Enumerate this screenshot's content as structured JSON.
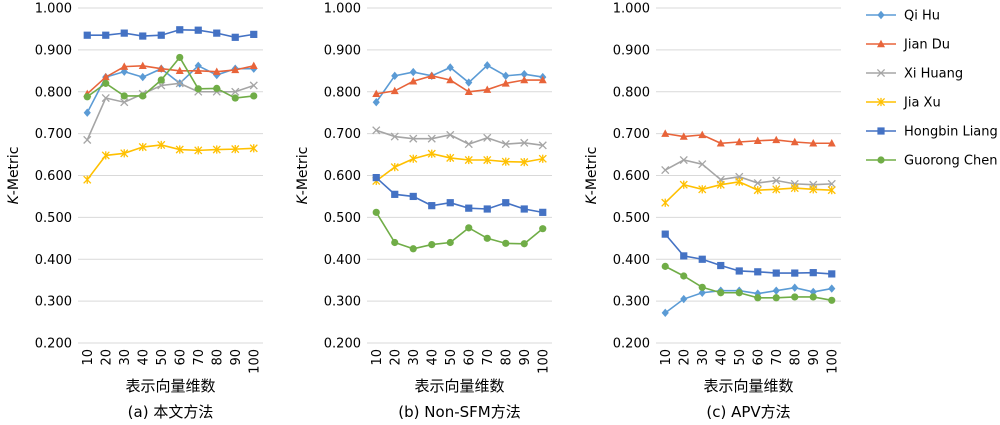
{
  "chart_data": [
    {
      "type": "line",
      "caption": "(a) 本文方法",
      "xlabel": "表示向量维数",
      "ylabel_prefix": "K",
      "ylabel_suffix": "-Metric",
      "ylim": [
        0.2,
        1.0
      ],
      "ytick_labels": [
        "0.200",
        "0.300",
        "0.400",
        "0.500",
        "0.600",
        "0.700",
        "0.800",
        "0.900",
        "1.000"
      ],
      "categories": [
        "10",
        "20",
        "30",
        "40",
        "50",
        "60",
        "70",
        "80",
        "90",
        "100"
      ],
      "series": [
        {
          "name": "Qi Hu",
          "values": [
            0.75,
            0.835,
            0.848,
            0.835,
            0.855,
            0.82,
            0.862,
            0.84,
            0.855,
            0.855
          ]
        },
        {
          "name": "Jian Du",
          "values": [
            0.795,
            0.835,
            0.86,
            0.862,
            0.855,
            0.85,
            0.85,
            0.848,
            0.852,
            0.862
          ]
        },
        {
          "name": "Xi Huang",
          "values": [
            0.685,
            0.785,
            0.775,
            0.795,
            0.815,
            0.82,
            0.8,
            0.8,
            0.8,
            0.815
          ]
        },
        {
          "name": "Jia Xu",
          "values": [
            0.59,
            0.648,
            0.653,
            0.668,
            0.673,
            0.662,
            0.66,
            0.662,
            0.663,
            0.665
          ]
        },
        {
          "name": "Hongbin Liang",
          "values": [
            0.935,
            0.935,
            0.94,
            0.933,
            0.935,
            0.948,
            0.947,
            0.94,
            0.93,
            0.937
          ]
        },
        {
          "name": "Guorong Chen",
          "values": [
            0.788,
            0.82,
            0.79,
            0.79,
            0.828,
            0.882,
            0.807,
            0.808,
            0.785,
            0.79
          ]
        }
      ]
    },
    {
      "type": "line",
      "caption": "(b) Non-SFM方法",
      "xlabel": "表示向量维数",
      "ylabel_prefix": "K",
      "ylabel_suffix": "-Metric",
      "ylim": [
        0.2,
        1.0
      ],
      "ytick_labels": [
        "0.200",
        "0.300",
        "0.400",
        "0.500",
        "0.600",
        "0.700",
        "0.800",
        "0.900",
        "1.000"
      ],
      "categories": [
        "10",
        "20",
        "30",
        "40",
        "50",
        "60",
        "70",
        "80",
        "90",
        "100"
      ],
      "series": [
        {
          "name": "Qi Hu",
          "values": [
            0.775,
            0.838,
            0.847,
            0.838,
            0.858,
            0.822,
            0.863,
            0.838,
            0.842,
            0.835
          ]
        },
        {
          "name": "Jian Du",
          "values": [
            0.795,
            0.802,
            0.825,
            0.838,
            0.828,
            0.8,
            0.805,
            0.82,
            0.828,
            0.828
          ]
        },
        {
          "name": "Xi Huang",
          "values": [
            0.708,
            0.693,
            0.688,
            0.688,
            0.697,
            0.675,
            0.69,
            0.675,
            0.678,
            0.672
          ]
        },
        {
          "name": "Jia Xu",
          "values": [
            0.587,
            0.62,
            0.64,
            0.652,
            0.642,
            0.637,
            0.637,
            0.633,
            0.632,
            0.64
          ]
        },
        {
          "name": "Hongbin Liang",
          "values": [
            0.595,
            0.555,
            0.55,
            0.528,
            0.535,
            0.522,
            0.52,
            0.535,
            0.52,
            0.512
          ]
        },
        {
          "name": "Guorong Chen",
          "values": [
            0.512,
            0.44,
            0.425,
            0.435,
            0.44,
            0.475,
            0.45,
            0.438,
            0.437,
            0.473
          ]
        }
      ]
    },
    {
      "type": "line",
      "caption": "(c) APV方法",
      "xlabel": "表示向量维数",
      "ylabel_prefix": "K",
      "ylabel_suffix": "-Metric",
      "ylim": [
        0.2,
        1.0
      ],
      "ytick_labels": [
        "0.200",
        "0.300",
        "0.400",
        "0.500",
        "0.600",
        "0.700",
        "0.800",
        "0.900",
        "1.000"
      ],
      "categories": [
        "10",
        "20",
        "30",
        "40",
        "50",
        "60",
        "70",
        "80",
        "90",
        "100"
      ],
      "series": [
        {
          "name": "Qi Hu",
          "values": [
            0.272,
            0.305,
            0.32,
            0.325,
            0.325,
            0.318,
            0.325,
            0.332,
            0.322,
            0.33
          ]
        },
        {
          "name": "Jian Du",
          "values": [
            0.7,
            0.693,
            0.697,
            0.677,
            0.68,
            0.683,
            0.685,
            0.68,
            0.677,
            0.677
          ]
        },
        {
          "name": "Xi Huang",
          "values": [
            0.613,
            0.637,
            0.627,
            0.59,
            0.597,
            0.582,
            0.588,
            0.58,
            0.578,
            0.58
          ]
        },
        {
          "name": "Jia Xu",
          "values": [
            0.535,
            0.578,
            0.567,
            0.578,
            0.585,
            0.565,
            0.567,
            0.57,
            0.567,
            0.565
          ]
        },
        {
          "name": "Hongbin Liang",
          "values": [
            0.46,
            0.408,
            0.4,
            0.385,
            0.372,
            0.37,
            0.367,
            0.367,
            0.368,
            0.365
          ]
        },
        {
          "name": "Guorong Chen",
          "values": [
            0.383,
            0.36,
            0.333,
            0.32,
            0.32,
            0.308,
            0.308,
            0.31,
            0.31,
            0.302
          ]
        }
      ]
    }
  ],
  "legend": {
    "placement": "right",
    "items": [
      {
        "name": "Qi Hu",
        "color": "#5b9bd5",
        "marker": "diamond"
      },
      {
        "name": "Jian Du",
        "color": "#e8643a",
        "marker": "triangle"
      },
      {
        "name": "Xi Huang",
        "color": "#a5a5a5",
        "marker": "x"
      },
      {
        "name": "Jia Xu",
        "color": "#ffc000",
        "marker": "star"
      },
      {
        "name": "Hongbin Liang",
        "color": "#4472c4",
        "marker": "square"
      },
      {
        "name": "Guorong Chen",
        "color": "#70ad47",
        "marker": "circle"
      }
    ]
  },
  "grid": true
}
